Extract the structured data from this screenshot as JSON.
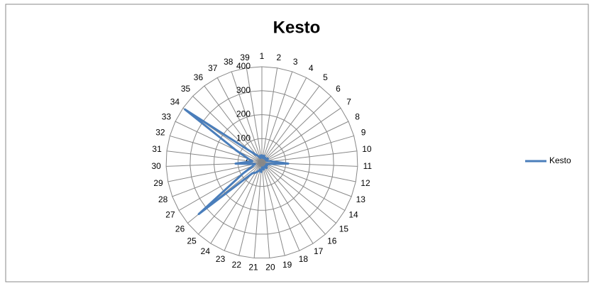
{
  "chart_data": {
    "type": "radar",
    "title": "Kesto",
    "categories": [
      "1",
      "2",
      "3",
      "4",
      "5",
      "6",
      "7",
      "8",
      "9",
      "10",
      "11",
      "12",
      "13",
      "14",
      "15",
      "16",
      "17",
      "18",
      "19",
      "20",
      "21",
      "22",
      "23",
      "24",
      "25",
      "26",
      "27",
      "28",
      "29",
      "30",
      "31",
      "32",
      "33",
      "34",
      "35",
      "36",
      "37",
      "38",
      "39"
    ],
    "series": [
      {
        "name": "Kesto",
        "color": "#4a7ebb",
        "values": [
          30,
          20,
          30,
          20,
          25,
          20,
          30,
          20,
          25,
          40,
          110,
          30,
          20,
          25,
          20,
          30,
          20,
          25,
          30,
          20,
          40,
          30,
          40,
          50,
          60,
          340,
          90,
          40,
          30,
          110,
          40,
          60,
          120,
          390,
          70,
          40,
          30,
          20,
          30
        ]
      }
    ],
    "ylim": [
      0,
      400
    ],
    "yticks": [
      0,
      100,
      200,
      300,
      400
    ],
    "grid": true,
    "legend": "right"
  }
}
